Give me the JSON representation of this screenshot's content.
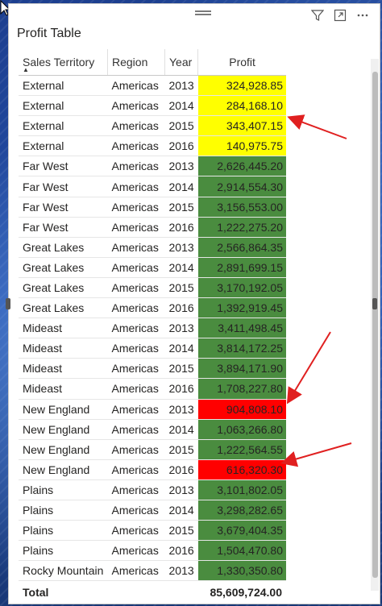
{
  "visual": {
    "title": "Profit Table",
    "icons": [
      "filter-icon",
      "focus-mode-icon",
      "more-options-icon"
    ]
  },
  "table": {
    "columns": [
      "Sales Territory",
      "Region",
      "Year",
      "Profit"
    ],
    "sort_indicator": "▲",
    "rows": [
      {
        "territory": "External",
        "region": "Americas",
        "year": "2013",
        "profit": "324,928.85",
        "color": "#ffff00"
      },
      {
        "territory": "External",
        "region": "Americas",
        "year": "2014",
        "profit": "284,168.10",
        "color": "#ffff00"
      },
      {
        "territory": "External",
        "region": "Americas",
        "year": "2015",
        "profit": "343,407.15",
        "color": "#ffff00"
      },
      {
        "territory": "External",
        "region": "Americas",
        "year": "2016",
        "profit": "140,975.75",
        "color": "#ffff00"
      },
      {
        "territory": "Far West",
        "region": "Americas",
        "year": "2013",
        "profit": "2,626,445.20",
        "color": "#4a8c3f"
      },
      {
        "territory": "Far West",
        "region": "Americas",
        "year": "2014",
        "profit": "2,914,554.30",
        "color": "#4a8c3f"
      },
      {
        "territory": "Far West",
        "region": "Americas",
        "year": "2015",
        "profit": "3,156,553.00",
        "color": "#4a8c3f"
      },
      {
        "territory": "Far West",
        "region": "Americas",
        "year": "2016",
        "profit": "1,222,275.20",
        "color": "#4a8c3f"
      },
      {
        "territory": "Great Lakes",
        "region": "Americas",
        "year": "2013",
        "profit": "2,566,864.35",
        "color": "#4a8c3f"
      },
      {
        "territory": "Great Lakes",
        "region": "Americas",
        "year": "2014",
        "profit": "2,891,699.15",
        "color": "#4a8c3f"
      },
      {
        "territory": "Great Lakes",
        "region": "Americas",
        "year": "2015",
        "profit": "3,170,192.05",
        "color": "#4a8c3f"
      },
      {
        "territory": "Great Lakes",
        "region": "Americas",
        "year": "2016",
        "profit": "1,392,919.45",
        "color": "#4a8c3f"
      },
      {
        "territory": "Mideast",
        "region": "Americas",
        "year": "2013",
        "profit": "3,411,498.45",
        "color": "#4a8c3f"
      },
      {
        "territory": "Mideast",
        "region": "Americas",
        "year": "2014",
        "profit": "3,814,172.25",
        "color": "#4a8c3f"
      },
      {
        "territory": "Mideast",
        "region": "Americas",
        "year": "2015",
        "profit": "3,894,171.90",
        "color": "#4a8c3f"
      },
      {
        "territory": "Mideast",
        "region": "Americas",
        "year": "2016",
        "profit": "1,708,227.80",
        "color": "#4a8c3f"
      },
      {
        "territory": "New England",
        "region": "Americas",
        "year": "2013",
        "profit": "904,808.10",
        "color": "#ff0000"
      },
      {
        "territory": "New England",
        "region": "Americas",
        "year": "2014",
        "profit": "1,063,266.80",
        "color": "#4a8c3f"
      },
      {
        "territory": "New England",
        "region": "Americas",
        "year": "2015",
        "profit": "1,222,564.55",
        "color": "#4a8c3f"
      },
      {
        "territory": "New England",
        "region": "Americas",
        "year": "2016",
        "profit": "616,320.30",
        "color": "#ff0000"
      },
      {
        "territory": "Plains",
        "region": "Americas",
        "year": "2013",
        "profit": "3,101,802.05",
        "color": "#4a8c3f"
      },
      {
        "territory": "Plains",
        "region": "Americas",
        "year": "2014",
        "profit": "3,298,282.65",
        "color": "#4a8c3f"
      },
      {
        "territory": "Plains",
        "region": "Americas",
        "year": "2015",
        "profit": "3,679,404.35",
        "color": "#4a8c3f"
      },
      {
        "territory": "Plains",
        "region": "Americas",
        "year": "2016",
        "profit": "1,504,470.80",
        "color": "#4a8c3f"
      },
      {
        "territory": "Rocky Mountain",
        "region": "Americas",
        "year": "2013",
        "profit": "1,330,350.80",
        "color": "#4a8c3f"
      }
    ],
    "total": {
      "label": "Total",
      "profit": "85,609,724.00"
    }
  },
  "colors": {
    "yellow": "#ffff00",
    "green": "#4a8c3f",
    "red": "#ff0000",
    "annotation_arrow": "#e02020"
  }
}
